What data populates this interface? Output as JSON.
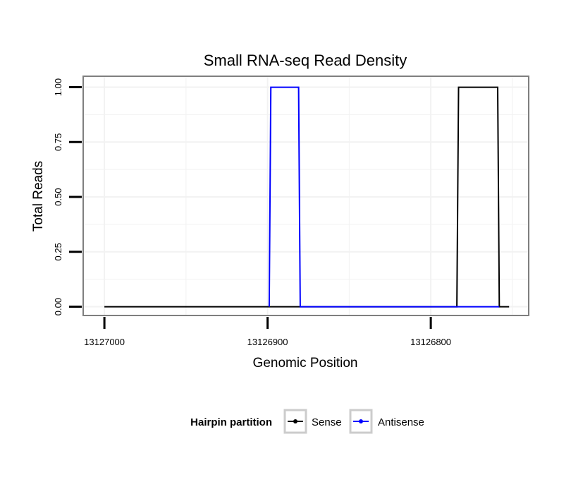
{
  "chart_data": {
    "type": "line",
    "title": "Small RNA-seq Read Density",
    "xlabel": "Genomic Position",
    "ylabel": "Total Reads",
    "x_reversed": true,
    "xlim": [
      13127013,
      13126740
    ],
    "ylim": [
      -0.04,
      1.05
    ],
    "x_ticks": [
      13127000,
      13126900,
      13126800
    ],
    "x_tick_labels": [
      "13127000",
      "13126900",
      "13126800"
    ],
    "y_ticks": [
      0,
      0.25,
      0.5,
      0.75,
      1
    ],
    "y_tick_labels": [
      "0.00",
      "0.25",
      "0.50",
      "0.75",
      "1.00"
    ],
    "grid": true,
    "legend_position": "bottom",
    "legend": {
      "title": "Hairpin partition",
      "entries": [
        "Sense",
        "Antisense"
      ]
    },
    "series": [
      {
        "name": "Sense",
        "color": "#000000",
        "x": [
          13127000,
          13126784,
          13126783,
          13126759,
          13126758,
          13126752
        ],
        "y": [
          0,
          0,
          1,
          1,
          0,
          0
        ]
      },
      {
        "name": "Antisense",
        "color": "#0000ff",
        "x": [
          13126899,
          13126898,
          13126881,
          13126880,
          13126758
        ],
        "y": [
          0,
          1,
          1,
          0,
          0
        ]
      }
    ]
  }
}
